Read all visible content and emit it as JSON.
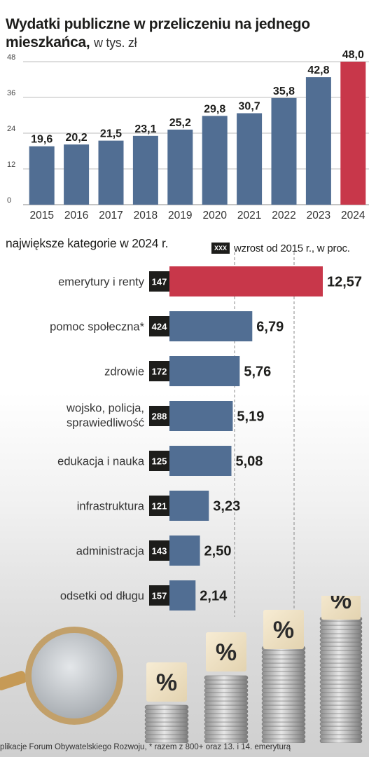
{
  "header": {
    "title": "Wydatki publiczne w przeliczeniu na jednego mieszkańca,",
    "unit": "w tys. zł"
  },
  "categories_section": {
    "title": "największe kategorie w 2024 r.",
    "legend_box": "XXX",
    "legend_text": "wzrost od 2015 r., w proc."
  },
  "source_text": "plikacje Forum Obywatelskiego Rozwoju, * razem z 800+ oraz 13. i 14. emeryturą",
  "decoration": {
    "percent_sign": "%"
  },
  "colors": {
    "bar": "#516e93",
    "highlight": "#c8374a",
    "badge": "#1d1d1b"
  },
  "chart_data": [
    {
      "type": "bar",
      "title": "Wydatki publiczne w przeliczeniu na jednego mieszkańca, w tys. zł",
      "categories": [
        "2015",
        "2016",
        "2017",
        "2018",
        "2019",
        "2020",
        "2021",
        "2022",
        "2023",
        "2024"
      ],
      "values": [
        19.6,
        20.2,
        21.5,
        23.1,
        25.2,
        29.8,
        30.7,
        35.8,
        42.8,
        48.0
      ],
      "value_labels": [
        "19,6",
        "20,2",
        "21,5",
        "23,1",
        "25,2",
        "29,8",
        "30,7",
        "35,8",
        "42,8",
        "48,0"
      ],
      "yticks": [
        "0",
        "12",
        "24",
        "36",
        "48"
      ],
      "ylim": [
        0,
        48
      ],
      "highlight_index": 9,
      "grid": true
    },
    {
      "type": "bar",
      "orientation": "horizontal",
      "title": "największe kategorie w 2024 r.",
      "categories": [
        "emerytury i renty",
        "pomoc społeczna*",
        "zdrowie",
        "wojsko, policja, sprawiedliwość",
        "edukacja i nauka",
        "infrastruktura",
        "administracja",
        "odsetki od długu"
      ],
      "label_lines": [
        [
          "emerytury i renty"
        ],
        [
          "pomoc społeczna*"
        ],
        [
          "zdrowie"
        ],
        [
          "wojsko, policja,",
          "sprawiedliwość"
        ],
        [
          "edukacja i nauka"
        ],
        [
          "infrastruktura"
        ],
        [
          "administracja"
        ],
        [
          "odsetki od długu"
        ]
      ],
      "values": [
        12.57,
        6.79,
        5.76,
        5.19,
        5.08,
        3.23,
        2.5,
        2.14
      ],
      "value_labels": [
        "12,57",
        "6,79",
        "5,76",
        "5,19",
        "5,08",
        "3,23",
        "2,50",
        "2,14"
      ],
      "growth_since_2015_pct": [
        147,
        424,
        172,
        288,
        125,
        121,
        143,
        157
      ],
      "highlight_index": 0,
      "xlim": [
        0,
        12.57
      ]
    }
  ]
}
